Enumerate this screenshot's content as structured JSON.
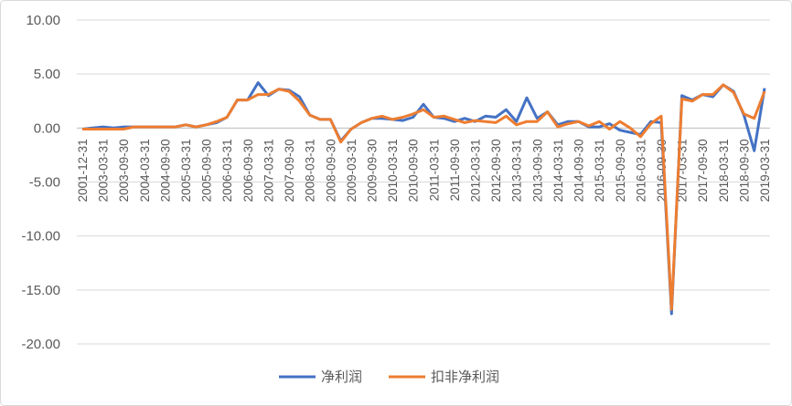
{
  "chart_data": {
    "type": "line",
    "categories": [
      "2001-12-31",
      null,
      "2003-03-31",
      null,
      "2003-09-30",
      null,
      "2004-03-31",
      null,
      "2004-09-30",
      null,
      "2005-03-31",
      null,
      "2005-09-30",
      null,
      "2006-03-31",
      null,
      "2006-09-30",
      null,
      "2007-03-31",
      null,
      "2007-09-30",
      null,
      "2008-03-31",
      null,
      "2008-09-30",
      null,
      "2009-03-31",
      null,
      "2009-09-30",
      null,
      "2010-03-31",
      null,
      "2010-09-30",
      null,
      "2011-03-31",
      null,
      "2011-09-30",
      null,
      "2012-03-31",
      null,
      "2012-09-30",
      null,
      "2013-03-31",
      null,
      "2013-09-30",
      null,
      "2014-03-31",
      null,
      "2014-09-30",
      null,
      "2015-03-31",
      null,
      "2015-09-30",
      null,
      "2016-03-31",
      null,
      "2016-09-30",
      null,
      "2017-03-31",
      null,
      "2017-09-30",
      null,
      "2018-03-31",
      null,
      "2018-09-30",
      null,
      "2019-03-31"
    ],
    "series": [
      {
        "name": "净利润",
        "color": "#4472c4",
        "values": [
          -0.1,
          0,
          0.1,
          0,
          0.1,
          0.1,
          0.1,
          0.1,
          0.1,
          0.1,
          0.3,
          0.1,
          0.3,
          0.5,
          1.0,
          2.6,
          2.6,
          4.2,
          3.0,
          3.6,
          3.5,
          2.9,
          1.2,
          0.8,
          0.8,
          -1.2,
          -0.1,
          0.5,
          0.9,
          0.9,
          0.8,
          0.7,
          1.0,
          2.2,
          1.0,
          0.9,
          0.6,
          0.9,
          0.6,
          1.1,
          1.0,
          1.7,
          0.6,
          2.8,
          0.9,
          1.5,
          0.3,
          0.6,
          0.6,
          0.1,
          0.1,
          0.4,
          -0.2,
          -0.4,
          -0.6,
          0.6,
          0.5,
          -17.2,
          3.0,
          2.6,
          3.1,
          2.9,
          4.0,
          3.4,
          1.2,
          -2.1,
          3.7
        ]
      },
      {
        "name": "扣非净利润",
        "color": "#ed7d31",
        "values": [
          -0.1,
          -0.1,
          -0.1,
          -0.1,
          -0.1,
          0.1,
          0.1,
          0.1,
          0.1,
          0.1,
          0.3,
          0.1,
          0.3,
          0.6,
          1.0,
          2.6,
          2.6,
          3.1,
          3.1,
          3.6,
          3.4,
          2.5,
          1.2,
          0.8,
          0.8,
          -1.3,
          -0.1,
          0.5,
          0.9,
          1.1,
          0.8,
          1.0,
          1.3,
          1.7,
          1.0,
          1.1,
          0.8,
          0.5,
          0.7,
          0.6,
          0.5,
          1.1,
          0.3,
          0.6,
          0.6,
          1.5,
          0.1,
          0.4,
          0.6,
          0.2,
          0.6,
          -0.1,
          0.6,
          0.0,
          -0.8,
          0.4,
          1.1,
          -16.8,
          2.7,
          2.5,
          3.1,
          3.1,
          4.0,
          3.3,
          1.3,
          0.9,
          3.4
        ]
      }
    ],
    "ylim": [
      -20,
      10
    ],
    "yticks": [
      {
        "value": -20,
        "label": "-20.00"
      },
      {
        "value": -15,
        "label": "-15.00"
      },
      {
        "value": -10,
        "label": "-10.00"
      },
      {
        "value": -5,
        "label": "-5.00"
      },
      {
        "value": 0,
        "label": "0.00"
      },
      {
        "value": 5,
        "label": "5.00"
      },
      {
        "value": 10,
        "label": "10.00"
      }
    ],
    "grid": true,
    "legend": "bottom"
  }
}
